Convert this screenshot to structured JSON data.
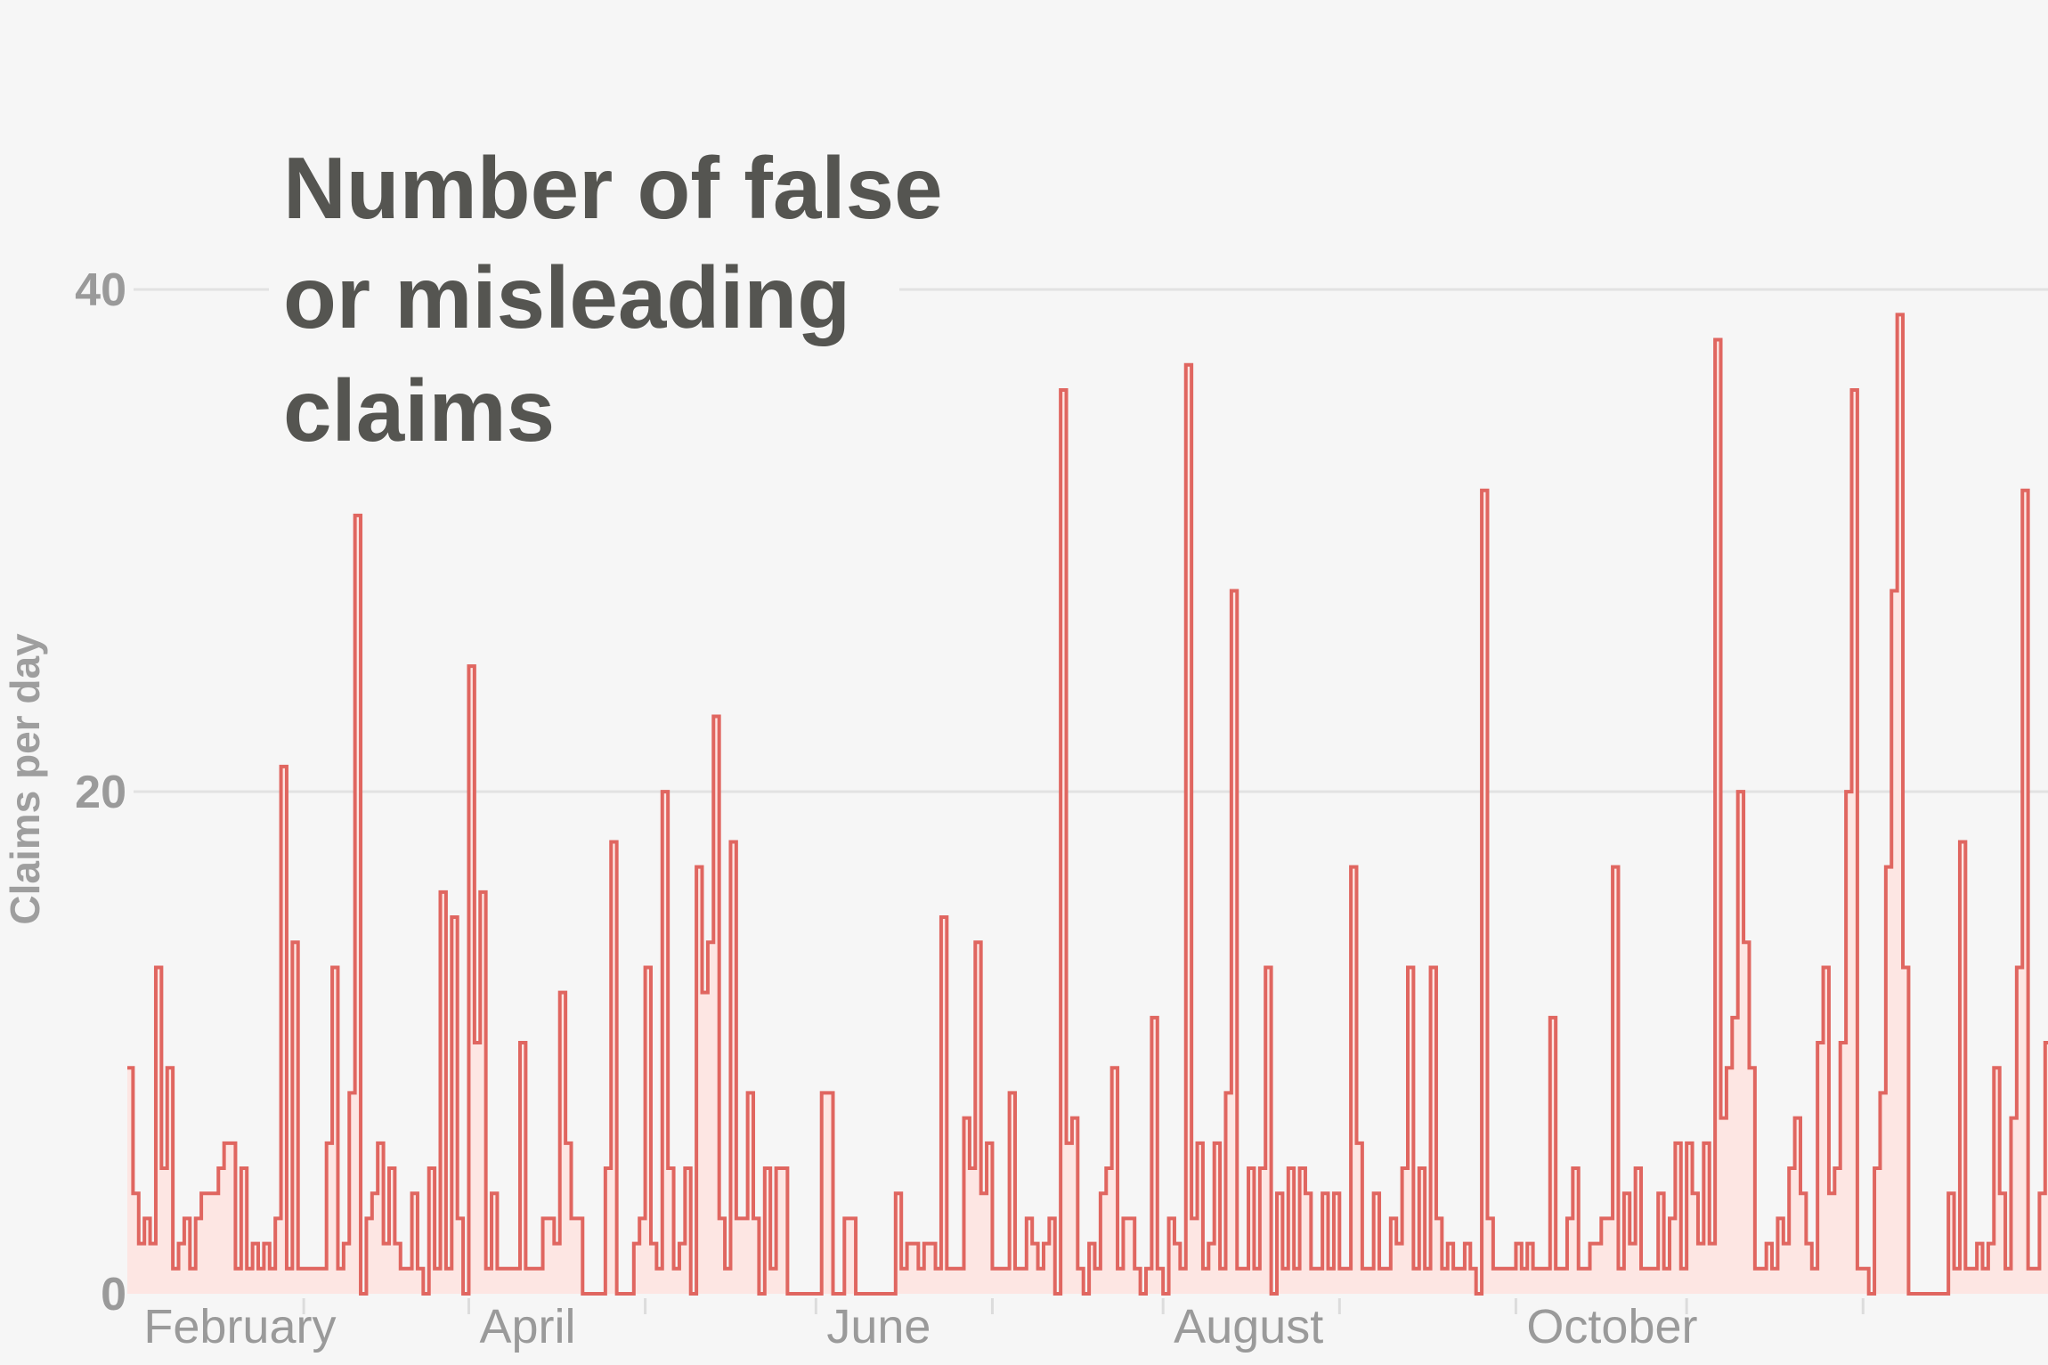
{
  "chart_data": {
    "type": "area",
    "title": [
      "Number of false",
      "or misleading",
      "claims"
    ],
    "ylabel": "Claims per day",
    "xlabel": "",
    "ylim": [
      0,
      51
    ],
    "yticks": [
      {
        "value": 0,
        "label": "0"
      },
      {
        "value": 20,
        "label": "20"
      },
      {
        "value": 40,
        "label": "40"
      }
    ],
    "month_labels": [
      {
        "label": "February",
        "day": 1
      },
      {
        "label": "April",
        "day": 60
      },
      {
        "label": "June",
        "day": 121
      },
      {
        "label": "August",
        "day": 182
      },
      {
        "label": "October",
        "day": 244
      }
    ],
    "month_ticks": [
      31,
      60,
      91,
      121,
      152,
      182,
      213,
      244,
      274,
      305
    ],
    "x_domain": [
      -0.5,
      337
    ],
    "colors": {
      "line": "#e06660",
      "fill": "#fde6e3",
      "background": "#f6f6f6"
    },
    "values": [
      9,
      4,
      2,
      3,
      2,
      13,
      5,
      9,
      1,
      2,
      3,
      1,
      3,
      4,
      4,
      4,
      5,
      6,
      6,
      1,
      5,
      1,
      2,
      1,
      2,
      1,
      3,
      21,
      1,
      14,
      1,
      1,
      1,
      1,
      1,
      6,
      13,
      1,
      2,
      8,
      31,
      0,
      3,
      4,
      6,
      2,
      5,
      2,
      1,
      1,
      4,
      1,
      0,
      5,
      1,
      16,
      1,
      15,
      3,
      0,
      25,
      10,
      16,
      1,
      4,
      1,
      1,
      1,
      1,
      10,
      1,
      1,
      1,
      3,
      3,
      2,
      12,
      6,
      3,
      3,
      0,
      0,
      0,
      0,
      5,
      18,
      0,
      0,
      0,
      2,
      3,
      13,
      2,
      1,
      20,
      5,
      1,
      2,
      5,
      0,
      17,
      12,
      14,
      23,
      3,
      1,
      18,
      3,
      3,
      8,
      3,
      0,
      5,
      1,
      5,
      5,
      0,
      0,
      0,
      0,
      0,
      0,
      8,
      8,
      0,
      0,
      3,
      3,
      0,
      0,
      0,
      0,
      0,
      0,
      0,
      4,
      1,
      2,
      2,
      1,
      2,
      2,
      1,
      15,
      1,
      1,
      1,
      7,
      5,
      14,
      4,
      6,
      1,
      1,
      1,
      8,
      1,
      1,
      3,
      2,
      1,
      2,
      3,
      0,
      36,
      6,
      7,
      1,
      0,
      2,
      1,
      4,
      5,
      9,
      1,
      3,
      3,
      1,
      0,
      1,
      11,
      1,
      0,
      3,
      2,
      1,
      37,
      3,
      6,
      1,
      2,
      6,
      1,
      8,
      28,
      1,
      1,
      5,
      1,
      5,
      13,
      0,
      4,
      1,
      5,
      1,
      5,
      4,
      1,
      1,
      4,
      1,
      4,
      1,
      1,
      17,
      6,
      1,
      1,
      4,
      1,
      1,
      3,
      2,
      5,
      13,
      1,
      5,
      1,
      13,
      3,
      1,
      2,
      1,
      1,
      2,
      1,
      0,
      32,
      3,
      1,
      1,
      1,
      1,
      2,
      1,
      2,
      1,
      1,
      1,
      11,
      1,
      1,
      3,
      5,
      1,
      1,
      2,
      2,
      3,
      3,
      17,
      1,
      4,
      2,
      5,
      1,
      1,
      1,
      4,
      1,
      3,
      6,
      1,
      6,
      4,
      2,
      6,
      2,
      38,
      7,
      9,
      11,
      20,
      14,
      9,
      1,
      1,
      2,
      1,
      3,
      2,
      5,
      7,
      4,
      2,
      1,
      10,
      13,
      4,
      5,
      10,
      20,
      36,
      1,
      1,
      0,
      5,
      8,
      17,
      28,
      39,
      13,
      0,
      0,
      0,
      0,
      0,
      0,
      0,
      4,
      1,
      18,
      1,
      1,
      2,
      1,
      2,
      9,
      4,
      1,
      7,
      13,
      32,
      1,
      1,
      4,
      10,
      4,
      6,
      6,
      1,
      1,
      2,
      1,
      0,
      0,
      0,
      1,
      1,
      1,
      1,
      5,
      1,
      1,
      0,
      2,
      3,
      1,
      4,
      1,
      1,
      0,
      10,
      0,
      0,
      0,
      0,
      1,
      5,
      4,
      1,
      4,
      4,
      4,
      4,
      4,
      11,
      50,
      1,
      1,
      2,
      2,
      1,
      1,
      1,
      4,
      2,
      1,
      10,
      1,
      7,
      11,
      1,
      2,
      10,
      1,
      1,
      1,
      1,
      1,
      1,
      5,
      1,
      4,
      14,
      1,
      1,
      10,
      4,
      0,
      1,
      1,
      0,
      8,
      2,
      4,
      14,
      1,
      1,
      19,
      1,
      1,
      15,
      1
    ]
  }
}
